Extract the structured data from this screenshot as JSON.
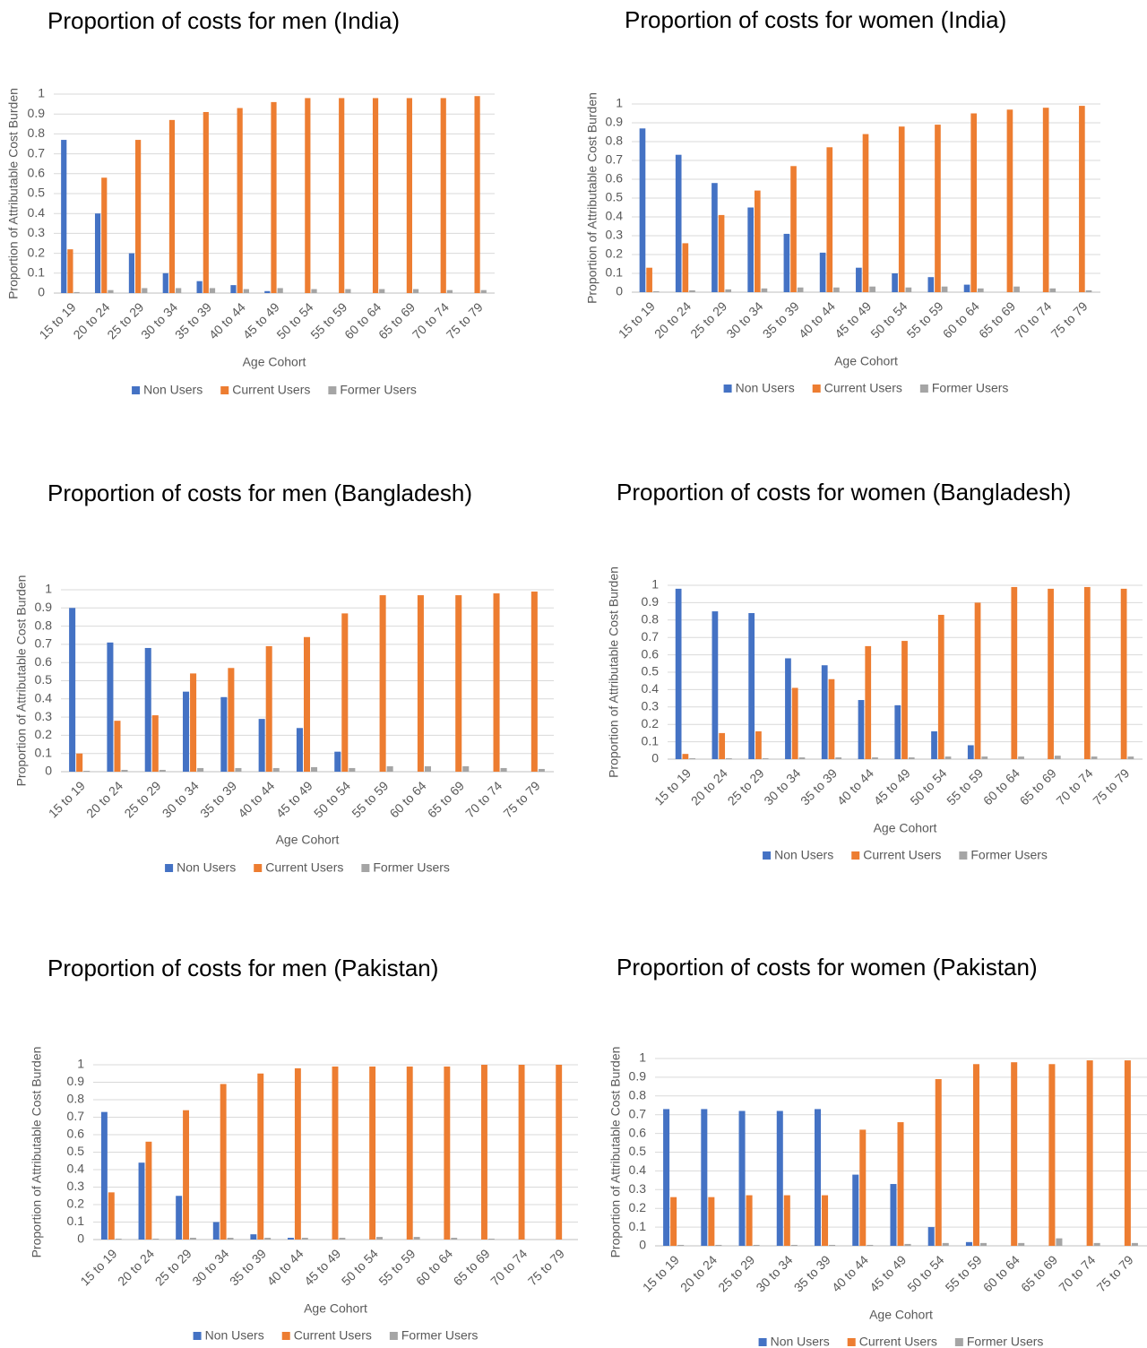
{
  "chart_data": [
    {
      "type": "bar",
      "title": "Proportion of costs for men (India)",
      "y_label": "Proportion of Attributable Cost Burden",
      "x_label": "Age Cohort",
      "categories": [
        "15 to 19",
        "20 to 24",
        "25 to 29",
        "30 to 34",
        "35 to 39",
        "40 to 44",
        "45 to 49",
        "50 to 54",
        "55 to 59",
        "60 to 64",
        "65 to 69",
        "70 to 74",
        "75 to 79"
      ],
      "series": [
        {
          "name": "Non Users",
          "color": "#4472c4",
          "values": [
            0.77,
            0.4,
            0.2,
            0.1,
            0.06,
            0.04,
            0.01,
            0,
            0,
            0,
            0,
            0,
            0
          ]
        },
        {
          "name": "Current Users",
          "color": "#ed7d31",
          "values": [
            0.22,
            0.58,
            0.77,
            0.87,
            0.91,
            0.93,
            0.96,
            0.98,
            0.98,
            0.98,
            0.98,
            0.98,
            0.99
          ]
        },
        {
          "name": "Former Users",
          "color": "#a5a5a5",
          "values": [
            0.005,
            0.015,
            0.025,
            0.025,
            0.025,
            0.02,
            0.025,
            0.02,
            0.02,
            0.02,
            0.02,
            0.015,
            0.015
          ]
        }
      ],
      "ylim": [
        0,
        1
      ],
      "yticks": [
        0,
        0.1,
        0.2,
        0.3,
        0.4,
        0.5,
        0.6,
        0.7,
        0.8,
        0.9,
        1
      ],
      "grid": true
    },
    {
      "type": "bar",
      "title": "Proportion of costs for women (India)",
      "y_label": "Proportion of Attributable Cost Burden",
      "x_label": "Age Cohort",
      "categories": [
        "15 to 19",
        "20 to 24",
        "25 to 29",
        "30 to 34",
        "35 to 39",
        "40 to 44",
        "45 to 49",
        "50 to 54",
        "55 to 59",
        "60 to 64",
        "65 to 69",
        "70 to 74",
        "75 to 79"
      ],
      "series": [
        {
          "name": "Non Users",
          "color": "#4472c4",
          "values": [
            0.87,
            0.73,
            0.58,
            0.45,
            0.31,
            0.21,
            0.13,
            0.1,
            0.08,
            0.04,
            0,
            0,
            0
          ]
        },
        {
          "name": "Current Users",
          "color": "#ed7d31",
          "values": [
            0.13,
            0.26,
            0.41,
            0.54,
            0.67,
            0.77,
            0.84,
            0.88,
            0.89,
            0.95,
            0.97,
            0.98,
            0.99
          ]
        },
        {
          "name": "Former Users",
          "color": "#a5a5a5",
          "values": [
            0.005,
            0.01,
            0.015,
            0.02,
            0.025,
            0.025,
            0.03,
            0.025,
            0.03,
            0.02,
            0.03,
            0.02,
            0.01
          ]
        }
      ],
      "ylim": [
        0,
        1
      ],
      "yticks": [
        0,
        0.1,
        0.2,
        0.3,
        0.4,
        0.5,
        0.6,
        0.7,
        0.8,
        0.9,
        1
      ],
      "grid": true
    },
    {
      "type": "bar",
      "title": "Proportion of costs for men (Bangladesh)",
      "y_label": "Proportion of Attributable Cost Burden",
      "x_label": "Age Cohort",
      "categories": [
        "15 to 19",
        "20 to 24",
        "25 to 29",
        "30 to 34",
        "35 to 39",
        "40 to 44",
        "45 to 49",
        "50 to 54",
        "55 to 59",
        "60 to 64",
        "65 to 69",
        "70 to 74",
        "75 to 79"
      ],
      "series": [
        {
          "name": "Non Users",
          "color": "#4472c4",
          "values": [
            0.9,
            0.71,
            0.68,
            0.44,
            0.41,
            0.29,
            0.24,
            0.11,
            0,
            0,
            0,
            0,
            0
          ]
        },
        {
          "name": "Current Users",
          "color": "#ed7d31",
          "values": [
            0.1,
            0.28,
            0.31,
            0.54,
            0.57,
            0.69,
            0.74,
            0.87,
            0.97,
            0.97,
            0.97,
            0.98,
            0.99
          ]
        },
        {
          "name": "Former Users",
          "color": "#a5a5a5",
          "values": [
            0.005,
            0.01,
            0.01,
            0.02,
            0.02,
            0.02,
            0.025,
            0.02,
            0.03,
            0.03,
            0.03,
            0.02,
            0.015
          ]
        }
      ],
      "ylim": [
        0,
        1
      ],
      "yticks": [
        0,
        0.1,
        0.2,
        0.3,
        0.4,
        0.5,
        0.6,
        0.7,
        0.8,
        0.9,
        1
      ],
      "grid": true
    },
    {
      "type": "bar",
      "title": "Proportion of costs for women (Bangladesh)",
      "y_label": "Proportion of Attributable Cost Burden",
      "x_label": "Age Cohort",
      "categories": [
        "15 to 19",
        "20 to 24",
        "25 to 29",
        "30 to 34",
        "35 to 39",
        "40 to 44",
        "45 to 49",
        "50 to 54",
        "55 to 59",
        "60 to 64",
        "65 to 69",
        "70 to 74",
        "75 to 79"
      ],
      "series": [
        {
          "name": "Non Users",
          "color": "#4472c4",
          "values": [
            0.98,
            0.85,
            0.84,
            0.58,
            0.54,
            0.34,
            0.31,
            0.16,
            0.08,
            0,
            0,
            0,
            0
          ]
        },
        {
          "name": "Current Users",
          "color": "#ed7d31",
          "values": [
            0.03,
            0.15,
            0.16,
            0.41,
            0.46,
            0.65,
            0.68,
            0.83,
            0.9,
            0.99,
            0.98,
            0.99,
            0.98
          ]
        },
        {
          "name": "Former Users",
          "color": "#a5a5a5",
          "values": [
            0.005,
            0.005,
            0.005,
            0.01,
            0.01,
            0.01,
            0.01,
            0.015,
            0.015,
            0.015,
            0.02,
            0.015,
            0.015
          ]
        }
      ],
      "ylim": [
        0,
        1
      ],
      "yticks": [
        0,
        0.1,
        0.2,
        0.3,
        0.4,
        0.5,
        0.6,
        0.7,
        0.8,
        0.9,
        1
      ],
      "grid": true
    },
    {
      "type": "bar",
      "title": "Proportion of costs for men (Pakistan)",
      "y_label": "Proportion of Attributable Cost Burden",
      "x_label": "Age Cohort",
      "categories": [
        "15 to 19",
        "20 to 24",
        "25 to 29",
        "30 to 34",
        "35 to 39",
        "40 to 44",
        "45 to 49",
        "50 to 54",
        "55 to 59",
        "60 to 64",
        "65 to 69",
        "70 to 74",
        "75 to 79"
      ],
      "series": [
        {
          "name": "Non Users",
          "color": "#4472c4",
          "values": [
            0.73,
            0.44,
            0.25,
            0.1,
            0.03,
            0.01,
            0,
            0,
            0,
            0,
            0,
            0,
            0
          ]
        },
        {
          "name": "Current Users",
          "color": "#ed7d31",
          "values": [
            0.27,
            0.56,
            0.74,
            0.89,
            0.95,
            0.98,
            0.99,
            0.99,
            0.99,
            0.99,
            1,
            1,
            1
          ]
        },
        {
          "name": "Former Users",
          "color": "#a5a5a5",
          "values": [
            0.005,
            0.005,
            0.01,
            0.01,
            0.01,
            0.01,
            0.01,
            0.015,
            0.015,
            0.01,
            0.005,
            0,
            0
          ]
        }
      ],
      "ylim": [
        0,
        1
      ],
      "yticks": [
        0,
        0.1,
        0.2,
        0.3,
        0.4,
        0.5,
        0.6,
        0.7,
        0.8,
        0.9,
        1
      ],
      "grid": true
    },
    {
      "type": "bar",
      "title": "Proportion of costs for women (Pakistan)",
      "y_label": "Proportion of Attributable Cost Burden",
      "x_label": "Age Cohort",
      "categories": [
        "15 to 19",
        "20 to 24",
        "25 to 29",
        "30 to 34",
        "35 to 39",
        "40 to 44",
        "45 to 49",
        "50 to 54",
        "55 to 59",
        "60 to 64",
        "65 to 69",
        "70 to 74",
        "75 to 79"
      ],
      "series": [
        {
          "name": "Non Users",
          "color": "#4472c4",
          "values": [
            0.73,
            0.73,
            0.72,
            0.72,
            0.73,
            0.38,
            0.33,
            0.1,
            0.02,
            0,
            0,
            0,
            0
          ]
        },
        {
          "name": "Current Users",
          "color": "#ed7d31",
          "values": [
            0.26,
            0.26,
            0.27,
            0.27,
            0.27,
            0.62,
            0.66,
            0.89,
            0.97,
            0.98,
            0.97,
            0.99,
            0.99
          ]
        },
        {
          "name": "Former Users",
          "color": "#a5a5a5",
          "values": [
            0.005,
            0.005,
            0.005,
            0.005,
            0.005,
            0.005,
            0.01,
            0.015,
            0.015,
            0.015,
            0.04,
            0.015,
            0.015
          ]
        }
      ],
      "ylim": [
        0,
        1
      ],
      "yticks": [
        0,
        0.1,
        0.2,
        0.3,
        0.4,
        0.5,
        0.6,
        0.7,
        0.8,
        0.9,
        1
      ],
      "grid": true
    }
  ]
}
